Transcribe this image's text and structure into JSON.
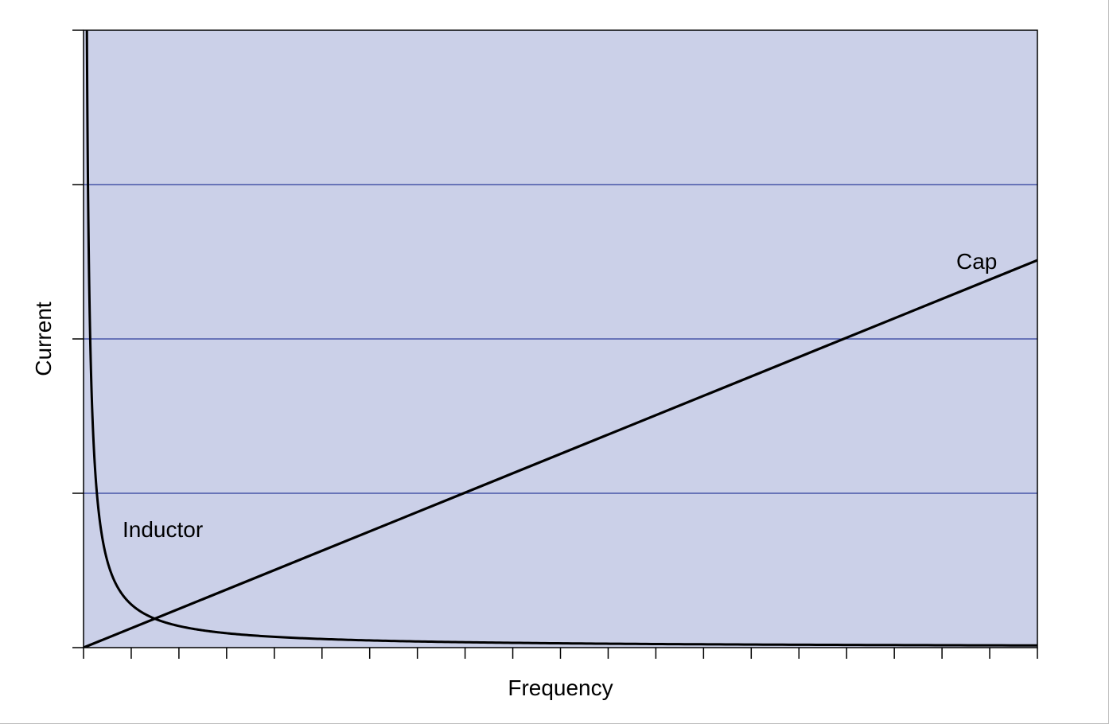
{
  "chart_data": {
    "type": "line",
    "title": "",
    "xlabel": "Frequency",
    "ylabel": "Current",
    "xlim": [
      0,
      20
    ],
    "ylim": [
      0,
      4
    ],
    "x_ticks": [
      0,
      1,
      2,
      3,
      4,
      5,
      6,
      7,
      8,
      9,
      10,
      11,
      12,
      13,
      14,
      15,
      16,
      17,
      18,
      19,
      20
    ],
    "y_ticks": [
      0,
      1,
      2,
      3,
      4
    ],
    "grid": "horizontal",
    "background_color": "#cbd0e8",
    "grid_color": "#2c3e9c",
    "line_color": "#000000",
    "series": [
      {
        "name": "Cap",
        "x": [
          0,
          20
        ],
        "y": [
          0,
          2.51
        ]
      },
      {
        "name": "Inductor",
        "x": [
          0.07,
          0.1,
          0.15,
          0.2,
          0.3,
          0.4,
          0.5,
          0.75,
          1,
          1.5,
          2,
          3,
          4,
          5,
          6,
          8,
          10,
          12,
          14,
          16,
          18,
          20
        ],
        "y": [
          4.0,
          2.8,
          1.87,
          1.4,
          0.93,
          0.7,
          0.56,
          0.37,
          0.28,
          0.187,
          0.14,
          0.093,
          0.07,
          0.056,
          0.047,
          0.035,
          0.028,
          0.023,
          0.02,
          0.0175,
          0.0156,
          0.014
        ]
      }
    ]
  }
}
